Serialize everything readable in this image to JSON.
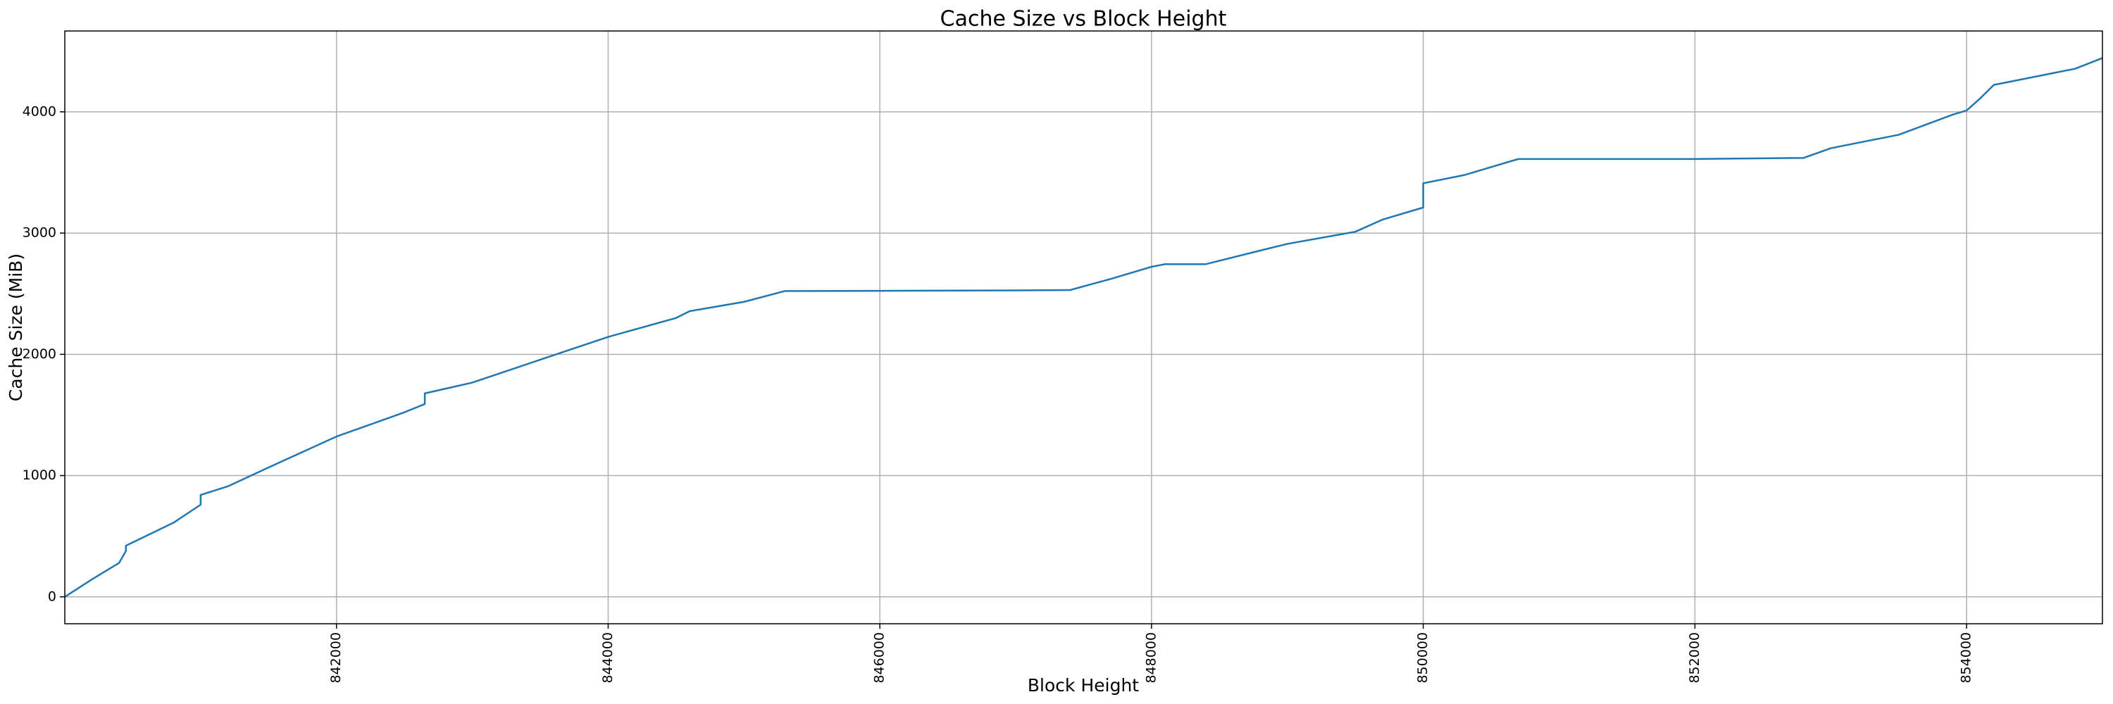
{
  "chart_data": {
    "type": "line",
    "title": "Cache Size vs Block Height",
    "x_label": "Block Height",
    "y_label": "Cache Size (MiB)",
    "x": [
      840000,
      840200,
      840400,
      840450,
      840450,
      840800,
      841000,
      841000,
      841200,
      841500,
      842000,
      842500,
      842650,
      842650,
      843000,
      843500,
      844000,
      844500,
      844600,
      845000,
      845300,
      846000,
      847000,
      847400,
      847700,
      848000,
      848100,
      848400,
      848800,
      849000,
      849500,
      849700,
      850000,
      850000,
      850300,
      850600,
      850700,
      852000,
      852800,
      853000,
      853500,
      853900,
      854000,
      854100,
      854200,
      854500,
      854800,
      855000
    ],
    "values": [
      0,
      144,
      280,
      378,
      422,
      611,
      760,
      840,
      911,
      1067,
      1322,
      1522,
      1590,
      1678,
      1767,
      1956,
      2144,
      2300,
      2356,
      2433,
      2522,
      2524,
      2527,
      2530,
      2622,
      2722,
      2744,
      2744,
      2856,
      2911,
      3011,
      3111,
      3211,
      3411,
      3478,
      3578,
      3611,
      3611,
      3620,
      3700,
      3811,
      3978,
      4011,
      4111,
      4222,
      4289,
      4356,
      4444
    ],
    "color": "#1f77b4",
    "xlim": [
      840000,
      855000
    ],
    "ylim": [
      -222,
      4667
    ],
    "xticks": [
      842000,
      844000,
      846000,
      848000,
      850000,
      852000,
      854000
    ],
    "yticks": [
      0,
      1000,
      2000,
      3000,
      4000
    ],
    "grid": true
  }
}
